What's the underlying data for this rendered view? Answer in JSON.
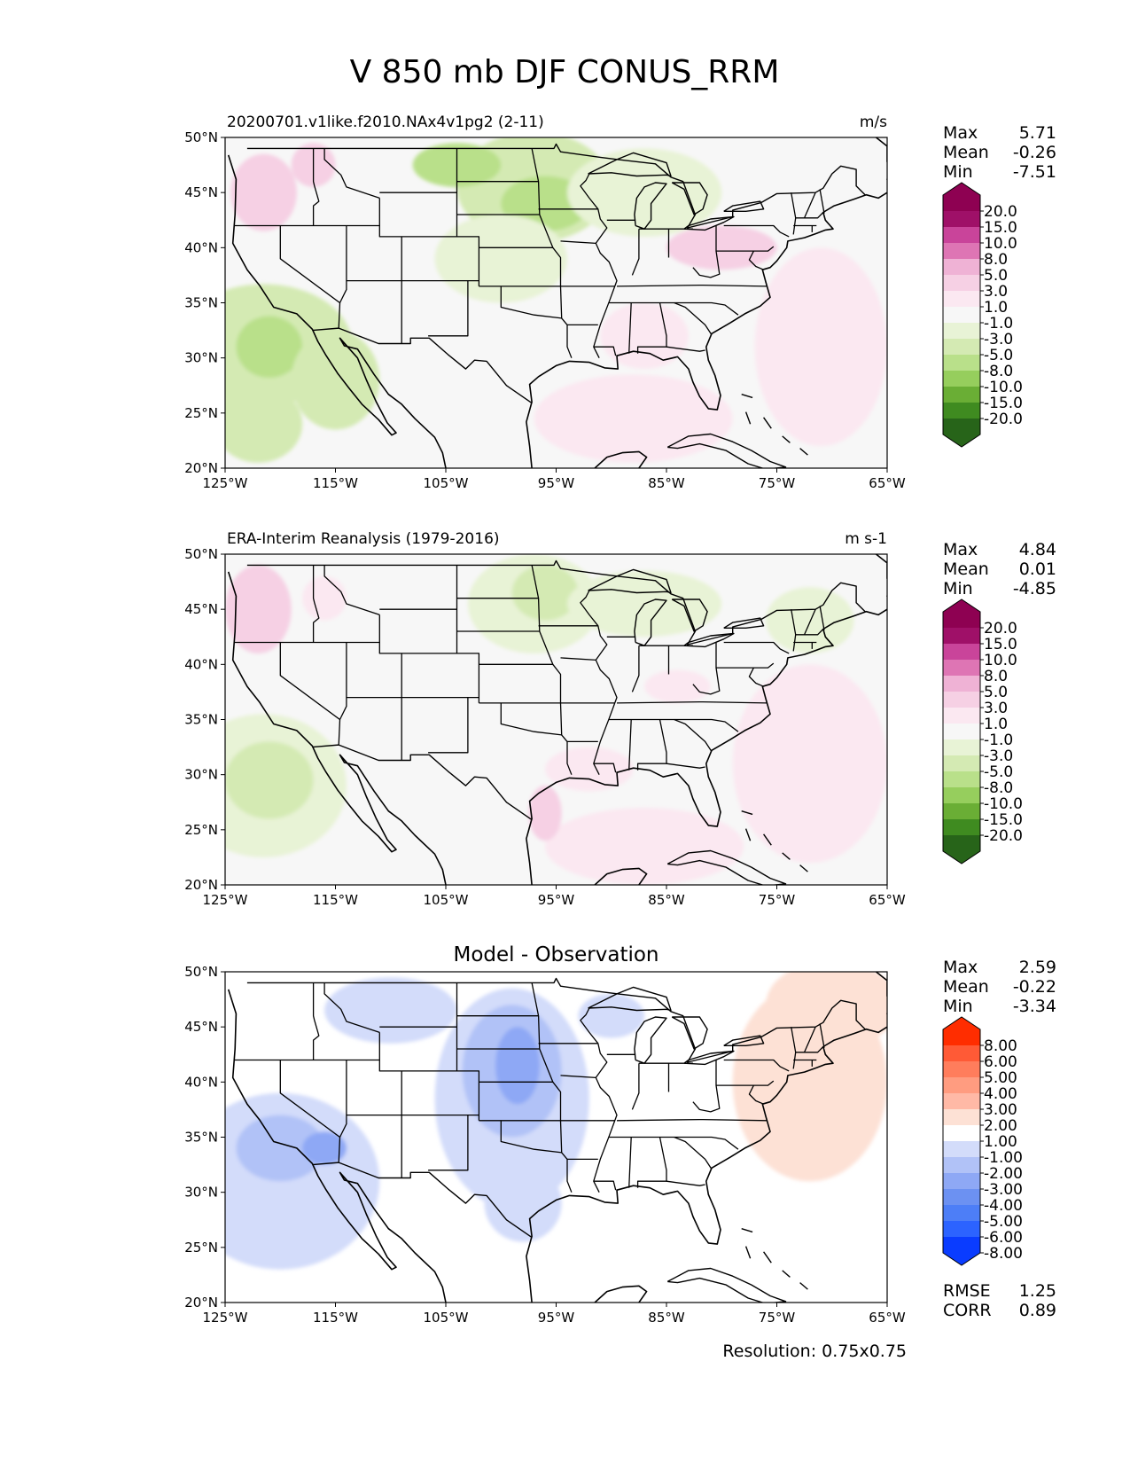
{
  "figure_title": "V 850 mb DJF CONUS_RRM",
  "resolution_label": "Resolution: 0.75x0.75",
  "colors": {
    "pg": [
      "#276419",
      "#3f8b20",
      "#6aae35",
      "#96ce5d",
      "#b9e08a",
      "#d4eab3",
      "#e8f3d6",
      "#f7f7f7",
      "#fbe8f1",
      "#f6d0e4",
      "#efb2d5",
      "#de75b4",
      "#c9449a",
      "#9f1068",
      "#8e0152"
    ],
    "diff": [
      "#0a3cff",
      "#2c63ff",
      "#4d7ef7",
      "#6c91f2",
      "#8ea8f5",
      "#b1c2f7",
      "#d3dcfa",
      "#ffffff",
      "#fde1d5",
      "#ffb9a6",
      "#ff9c80",
      "#ff7d5c",
      "#ff5a36",
      "#ff2d00"
    ],
    "land_outline": "#000000",
    "white_fill": "#ffffff"
  },
  "chart_data": [
    {
      "type": "contour_map",
      "title_left": "20200701.v1like.f2010.NAx4v1pg2 (2-11)",
      "title_right": "m/s",
      "title_center": "",
      "stats": [
        {
          "label": "Max",
          "value": "5.71"
        },
        {
          "label": "Mean",
          "value": "-0.26"
        },
        {
          "label": "Min",
          "value": "-7.51"
        }
      ],
      "extra_stats": [],
      "colorbar": {
        "palette": "pg",
        "labels": [
          "20.0",
          "15.0",
          "10.0",
          "8.0",
          "5.0",
          "3.0",
          "1.0",
          "-1.0",
          "-3.0",
          "-5.0",
          "-8.0",
          "-10.0",
          "-15.0",
          "-20.0"
        ]
      },
      "base_level": 7,
      "xlim": [
        -125,
        -65
      ],
      "ylim": [
        20,
        50
      ],
      "xticks": [
        "125°W",
        "115°W",
        "105°W",
        "95°W",
        "85°W",
        "75°W",
        "65°W"
      ],
      "yticks": [
        "50°N",
        "45°N",
        "40°N",
        "35°N",
        "30°N",
        "25°N",
        "20°N"
      ],
      "blobs": [
        {
          "lon": -121.5,
          "lat": 31.2,
          "rlon": 8.0,
          "rlat": 5.5,
          "level": 5
        },
        {
          "lon": -121.0,
          "lat": 31.0,
          "rlon": 3.0,
          "rlat": 2.8,
          "level": 4
        },
        {
          "lon": -115.0,
          "lat": 28.0,
          "rlon": 4.0,
          "rlat": 4.5,
          "level": 5
        },
        {
          "lon": -122.0,
          "lat": 24.0,
          "rlon": 4.0,
          "rlat": 3.5,
          "level": 5
        },
        {
          "lon": -97.0,
          "lat": 45.5,
          "rlon": 7.0,
          "rlat": 5.0,
          "level": 5
        },
        {
          "lon": -96.0,
          "lat": 44.0,
          "rlon": 4.0,
          "rlat": 2.5,
          "level": 4
        },
        {
          "lon": -104.0,
          "lat": 47.5,
          "rlon": 4.0,
          "rlat": 2.0,
          "level": 4
        },
        {
          "lon": -87.0,
          "lat": 45.0,
          "rlon": 7.0,
          "rlat": 4.0,
          "level": 6
        },
        {
          "lon": -100.0,
          "lat": 39.0,
          "rlon": 6.0,
          "rlat": 4.0,
          "level": 6
        },
        {
          "lon": -121.5,
          "lat": 45.0,
          "rlon": 3.0,
          "rlat": 3.5,
          "level": 9
        },
        {
          "lon": -117.0,
          "lat": 47.5,
          "rlon": 2.0,
          "rlat": 2.0,
          "level": 9
        },
        {
          "lon": -71.0,
          "lat": 31.0,
          "rlon": 6.0,
          "rlat": 9.0,
          "level": 8
        },
        {
          "lon": -88.0,
          "lat": 24.5,
          "rlon": 9.0,
          "rlat": 4.0,
          "level": 8
        },
        {
          "lon": -80.0,
          "lat": 40.0,
          "rlon": 5.0,
          "rlat": 2.0,
          "level": 9
        },
        {
          "lon": -87.0,
          "lat": 32.0,
          "rlon": 4.0,
          "rlat": 3.0,
          "level": 8
        }
      ]
    },
    {
      "type": "contour_map",
      "title_left": "ERA-Interim Reanalysis (1979-2016)",
      "title_right": "m s-1",
      "title_center": "",
      "stats": [
        {
          "label": "Max",
          "value": "4.84"
        },
        {
          "label": "Mean",
          "value": "0.01"
        },
        {
          "label": "Min",
          "value": "-4.85"
        }
      ],
      "extra_stats": [],
      "colorbar": {
        "palette": "pg",
        "labels": [
          "20.0",
          "15.0",
          "10.0",
          "8.0",
          "5.0",
          "3.0",
          "1.0",
          "-1.0",
          "-3.0",
          "-5.0",
          "-8.0",
          "-10.0",
          "-15.0",
          "-20.0"
        ]
      },
      "base_level": 7,
      "xlim": [
        -125,
        -65
      ],
      "ylim": [
        20,
        50
      ],
      "xticks": [
        "125°W",
        "115°W",
        "105°W",
        "95°W",
        "85°W",
        "75°W",
        "65°W"
      ],
      "yticks": [
        "50°N",
        "45°N",
        "40°N",
        "35°N",
        "30°N",
        "25°N",
        "20°N"
      ],
      "blobs": [
        {
          "lon": -121.5,
          "lat": 29.0,
          "rlon": 7.5,
          "rlat": 6.5,
          "level": 6
        },
        {
          "lon": -121.0,
          "lat": 29.5,
          "rlon": 4.0,
          "rlat": 3.5,
          "level": 5
        },
        {
          "lon": -97.0,
          "lat": 45.5,
          "rlon": 6.0,
          "rlat": 4.5,
          "level": 6
        },
        {
          "lon": -96.0,
          "lat": 46.5,
          "rlon": 3.0,
          "rlat": 2.5,
          "level": 5
        },
        {
          "lon": -87.0,
          "lat": 45.5,
          "rlon": 7.0,
          "rlat": 3.0,
          "level": 6
        },
        {
          "lon": -72.0,
          "lat": 44.0,
          "rlon": 4.0,
          "rlat": 3.0,
          "level": 6
        },
        {
          "lon": -122.0,
          "lat": 45.0,
          "rlon": 3.0,
          "rlat": 4.0,
          "level": 9
        },
        {
          "lon": -116.0,
          "lat": 46.0,
          "rlon": 2.0,
          "rlat": 2.0,
          "level": 8
        },
        {
          "lon": -72.0,
          "lat": 31.0,
          "rlon": 7.0,
          "rlat": 9.0,
          "level": 8
        },
        {
          "lon": -87.0,
          "lat": 23.5,
          "rlon": 9.0,
          "rlat": 3.5,
          "level": 8
        },
        {
          "lon": -96.0,
          "lat": 26.5,
          "rlon": 1.5,
          "rlat": 2.5,
          "level": 9
        },
        {
          "lon": -92.0,
          "lat": 30.5,
          "rlon": 4.0,
          "rlat": 2.0,
          "level": 8
        },
        {
          "lon": -84.0,
          "lat": 38.0,
          "rlon": 3.0,
          "rlat": 1.5,
          "level": 8
        }
      ]
    },
    {
      "type": "contour_map",
      "title_left": "",
      "title_right": "",
      "title_center": "Model - Observation",
      "stats": [
        {
          "label": "Max",
          "value": "2.59"
        },
        {
          "label": "Mean",
          "value": "-0.22"
        },
        {
          "label": "Min",
          "value": "-3.34"
        }
      ],
      "extra_stats": [
        {
          "label": "RMSE",
          "value": "1.25"
        },
        {
          "label": "CORR",
          "value": "0.89"
        }
      ],
      "colorbar": {
        "palette": "diff",
        "labels": [
          "8.00",
          "6.00",
          "5.00",
          "4.00",
          "3.00",
          "2.00",
          "1.00",
          "-1.00",
          "-2.00",
          "-3.00",
          "-4.00",
          "-5.00",
          "-6.00",
          "-8.00"
        ]
      },
      "base_level": 7,
      "xlim": [
        -125,
        -65
      ],
      "ylim": [
        20,
        50
      ],
      "xticks": [
        "125°W",
        "115°W",
        "105°W",
        "95°W",
        "85°W",
        "75°W",
        "65°W"
      ],
      "yticks": [
        "50°N",
        "45°N",
        "40°N",
        "35°N",
        "30°N",
        "25°N",
        "20°N"
      ],
      "blobs": [
        {
          "lon": -120.0,
          "lat": 31.0,
          "rlon": 9.0,
          "rlat": 8.0,
          "level": 6
        },
        {
          "lon": -120.0,
          "lat": 34.0,
          "rlon": 4.0,
          "rlat": 3.0,
          "level": 5
        },
        {
          "lon": -116.0,
          "lat": 34.0,
          "rlon": 2.0,
          "rlat": 1.5,
          "level": 4
        },
        {
          "lon": -99.0,
          "lat": 38.5,
          "rlon": 7.0,
          "rlat": 10.0,
          "level": 6
        },
        {
          "lon": -99.0,
          "lat": 41.0,
          "rlon": 4.5,
          "rlat": 6.0,
          "level": 5
        },
        {
          "lon": -98.5,
          "lat": 41.5,
          "rlon": 2.0,
          "rlat": 3.5,
          "level": 4
        },
        {
          "lon": -98.0,
          "lat": 29.0,
          "rlon": 3.5,
          "rlat": 3.5,
          "level": 6
        },
        {
          "lon": -110.0,
          "lat": 46.5,
          "rlon": 6.0,
          "rlat": 3.0,
          "level": 6
        },
        {
          "lon": -90.0,
          "lat": 46.0,
          "rlon": 3.0,
          "rlat": 2.0,
          "level": 6
        },
        {
          "lon": -72.0,
          "lat": 40.0,
          "rlon": 7.0,
          "rlat": 9.0,
          "level": 8
        },
        {
          "lon": -70.0,
          "lat": 47.0,
          "rlon": 6.0,
          "rlat": 4.0,
          "level": 8
        }
      ]
    }
  ]
}
